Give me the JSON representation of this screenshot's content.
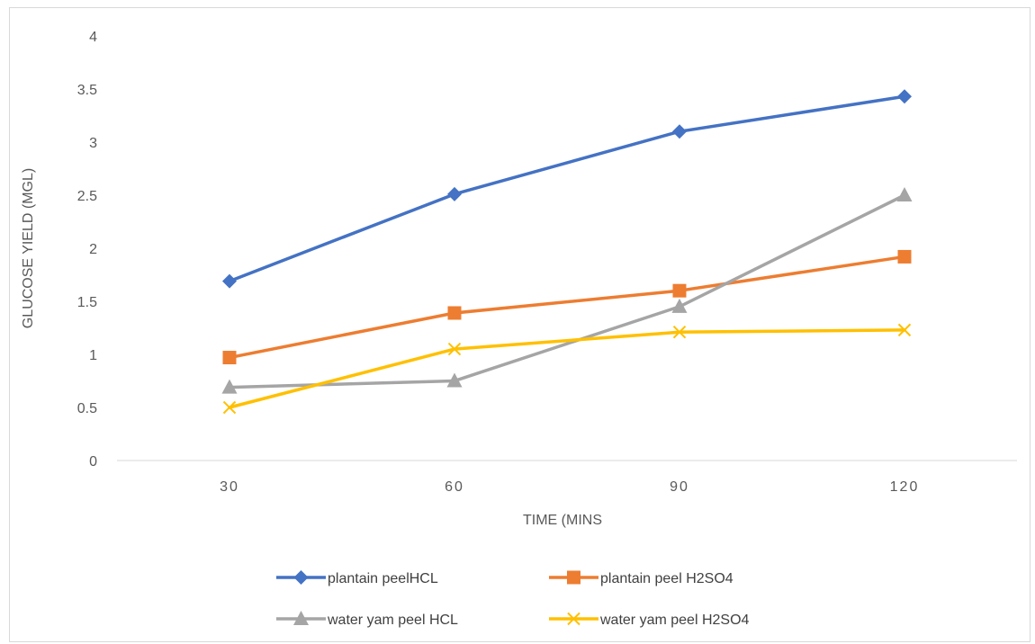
{
  "chart_data": {
    "type": "line",
    "title": "",
    "xlabel": "TIME (MINS",
    "ylabel": "GLUCOSE YIELD (MGL)",
    "categories": [
      "30",
      "60",
      "90",
      "120"
    ],
    "ylim": [
      0,
      4
    ],
    "yticks": [
      "0",
      "0.5",
      "1",
      "1.5",
      "2",
      "2.5",
      "3",
      "3.5",
      "4"
    ],
    "grid": false,
    "legend": "bottom",
    "series": [
      {
        "name": "plantain peelHCL",
        "values": [
          1.69,
          2.51,
          3.1,
          3.43
        ],
        "color": "#4472C4",
        "marker": "diamond"
      },
      {
        "name": "plantain peel H2SO4",
        "values": [
          0.97,
          1.39,
          1.6,
          1.92
        ],
        "color": "#ED7D31",
        "marker": "square"
      },
      {
        "name": "water yam peel HCL",
        "values": [
          0.69,
          0.75,
          1.45,
          2.5
        ],
        "color": "#A5A5A5",
        "marker": "triangle"
      },
      {
        "name": "water yam peel H2SO4",
        "values": [
          0.5,
          1.05,
          1.21,
          1.23
        ],
        "color": "#FFC000",
        "marker": "x"
      }
    ]
  }
}
